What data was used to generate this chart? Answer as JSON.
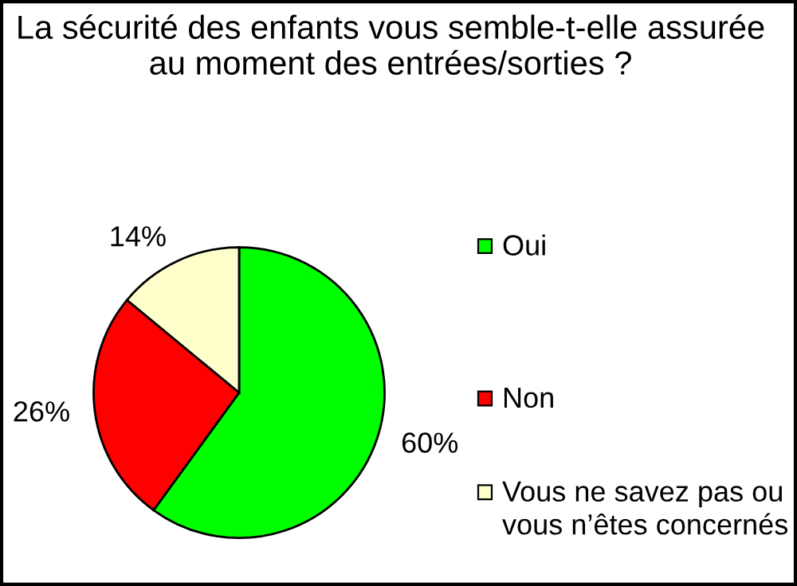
{
  "chart_data": {
    "type": "pie",
    "title": "La sécurité des enfants vous semble-t-elle assurée au moment des entrées/sorties ?",
    "categories": [
      "Oui",
      "Non",
      "Vous ne savez pas ou vous n’êtes concernés"
    ],
    "values": [
      60,
      26,
      14
    ],
    "colors": [
      "#00ff00",
      "#ff0000",
      "#ffffcc"
    ],
    "value_labels": [
      "60%",
      "26%",
      "14%"
    ],
    "legend": "right"
  }
}
